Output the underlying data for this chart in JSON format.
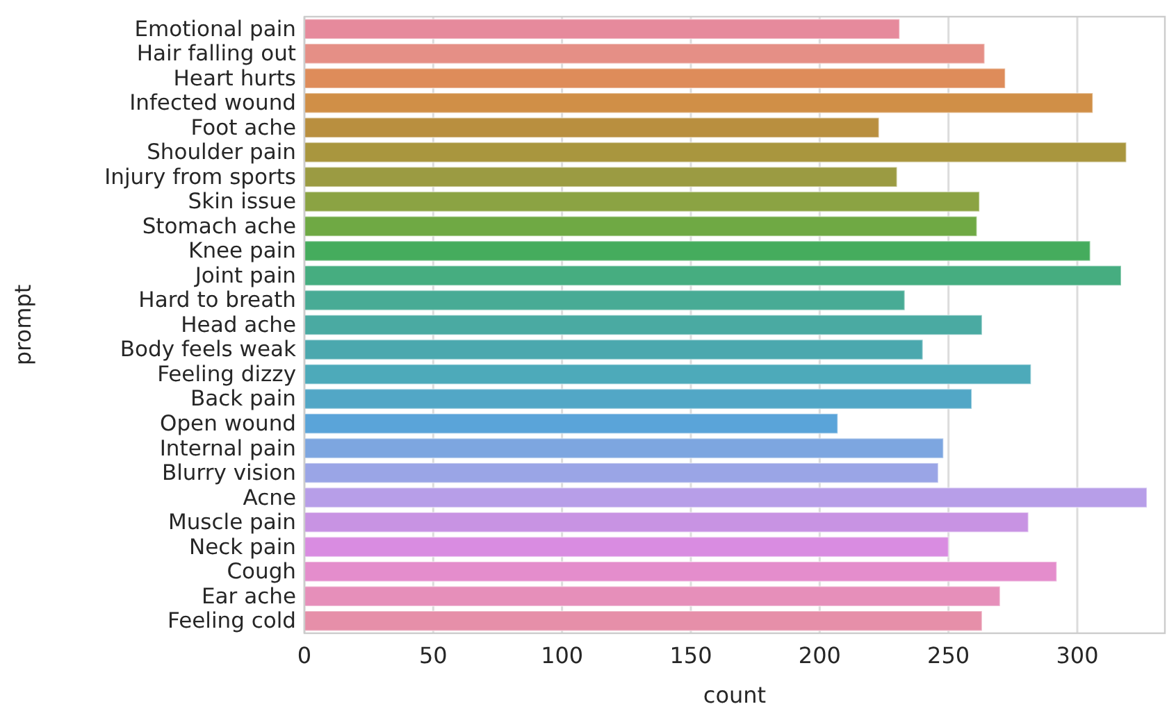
{
  "chart_data": {
    "type": "bar",
    "orientation": "horizontal",
    "xlabel": "count",
    "ylabel": "prompt",
    "categories": [
      "Emotional pain",
      "Hair falling out",
      "Heart hurts",
      "Infected wound",
      "Foot ache",
      "Shoulder pain",
      "Injury from sports",
      "Skin issue",
      "Stomach ache",
      "Knee pain",
      "Joint pain",
      "Hard to breath",
      "Head ache",
      "Body feels weak",
      "Feeling dizzy",
      "Back pain",
      "Open wound",
      "Internal pain",
      "Blurry vision",
      "Acne",
      "Muscle pain",
      "Neck pain",
      "Cough",
      "Ear ache",
      "Feeling cold"
    ],
    "values": [
      231,
      264,
      272,
      306,
      223,
      319,
      230,
      262,
      261,
      305,
      317,
      233,
      263,
      240,
      282,
      259,
      207,
      248,
      246,
      327,
      281,
      250,
      292,
      270,
      263
    ],
    "colors": [
      "#e68a9c",
      "#e58f86",
      "#de8c5a",
      "#d08f47",
      "#b98f3f",
      "#a9963e",
      "#9b9b42",
      "#8ba343",
      "#6fa944",
      "#45ac5d",
      "#46ad80",
      "#48ab95",
      "#4aaaa2",
      "#4ba8ae",
      "#4daaba",
      "#52a7c6",
      "#5aa4d9",
      "#7da6e0",
      "#9aa5e6",
      "#b79ee8",
      "#c893e3",
      "#d98ce1",
      "#e48dcc",
      "#e68fba",
      "#e68fa9"
    ],
    "xlim": [
      0,
      334
    ],
    "xticks": [
      0,
      50,
      100,
      150,
      200,
      250,
      300
    ],
    "grid": "x"
  }
}
